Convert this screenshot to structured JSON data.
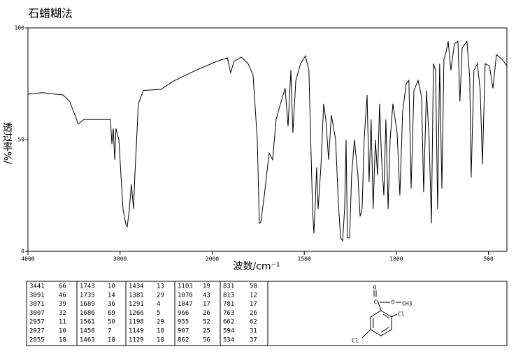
{
  "chart_data": {
    "type": "line",
    "title": "石蜡糊法",
    "x_label": "波数/cm⁻¹",
    "y_label": "透过率%/",
    "xlim": [
      4000,
      400
    ],
    "x_break": 2000,
    "xticks": [
      4000,
      3000,
      2000,
      1500,
      1000,
      500
    ],
    "ylim": [
      0,
      100
    ],
    "yticks": [
      0,
      50,
      100
    ],
    "color": "#000000",
    "x": [
      4000,
      3848,
      3620,
      3545,
      3454,
      3393,
      3165,
      3104,
      3089,
      3074,
      3059,
      3044,
      3013,
      2990,
      2968,
      2937,
      2922,
      2899,
      2877,
      2854,
      2839,
      2801,
      2748,
      2558,
      2406,
      2178,
      1975,
      1918,
      1900,
      1881,
      1842,
      1805,
      1778,
      1755,
      1744,
      1736,
      1717,
      1691,
      1672,
      1653,
      1626,
      1604,
      1588,
      1573,
      1562,
      1546,
      1520,
      1494,
      1475,
      1455,
      1448,
      1440,
      1433,
      1425,
      1410,
      1395,
      1383,
      1368,
      1353,
      1330,
      1315,
      1303,
      1292,
      1281,
      1273,
      1266,
      1254,
      1243,
      1228,
      1209,
      1197,
      1186,
      1175,
      1159,
      1148,
      1137,
      1126,
      1114,
      1102,
      1091,
      1080,
      1068,
      1057,
      1045,
      1034,
      1019,
      996,
      981,
      966,
      947,
      932,
      920,
      905,
      882,
      863,
      852,
      837,
      822,
      810,
      799,
      787,
      776,
      765,
      753,
      742,
      731,
      719,
      704,
      685,
      666,
      655,
      643,
      617,
      602,
      594,
      579,
      560,
      545,
      533,
      518,
      495,
      476,
      457,
      427,
      400
    ],
    "values": [
      70.3,
      71,
      70,
      67,
      57,
      59,
      59,
      59,
      48,
      55,
      41,
      55,
      50,
      34,
      19,
      12,
      11,
      19,
      30,
      19,
      34,
      66,
      72,
      72.5,
      76.5,
      81,
      85,
      86.6,
      80,
      85,
      87,
      84,
      79,
      50,
      12.5,
      13,
      25,
      44,
      41,
      59,
      67,
      73,
      56,
      81,
      53,
      76.5,
      84,
      87.5,
      81,
      19,
      8,
      22,
      37.5,
      19,
      37.5,
      66,
      59,
      41,
      61,
      50,
      22,
      6,
      4.7,
      19,
      50,
      6,
      6,
      34,
      50,
      34,
      15.6,
      19,
      50,
      70,
      31,
      59,
      19,
      50,
      34,
      66,
      41,
      25,
      59,
      19,
      50,
      66,
      53,
      25,
      62.5,
      75,
      76.5,
      28,
      72,
      76.5,
      69,
      26.5,
      72,
      50,
      12.5,
      84,
      81,
      19,
      84,
      28,
      86,
      89,
      94,
      81,
      93,
      94,
      67,
      91,
      94,
      78,
      33,
      81,
      84,
      72,
      39,
      84,
      83,
      73,
      88,
      86,
      83
    ]
  },
  "table": {
    "rows": [
      [
        3441,
        66,
        1743,
        10,
        1434,
        13,
        1103,
        19,
        831,
        58
      ],
      [
        3091,
        46,
        1735,
        14,
        1381,
        29,
        1070,
        43,
        813,
        12
      ],
      [
        3071,
        39,
        1689,
        36,
        1291,
        4,
        1047,
        17,
        781,
        17
      ],
      [
        3007,
        32,
        1686,
        69,
        1266,
        5,
        966,
        26,
        763,
        26
      ],
      [
        2957,
        11,
        1561,
        50,
        1198,
        29,
        955,
        52,
        662,
        62
      ],
      [
        2927,
        10,
        1458,
        7,
        1149,
        18,
        907,
        25,
        594,
        31
      ],
      [
        2855,
        18,
        1463,
        18,
        1129,
        18,
        862,
        56,
        534,
        37
      ]
    ]
  },
  "structure": {
    "labels": [
      "O",
      "C",
      "O",
      "CH3",
      "Cl",
      "Cl"
    ]
  }
}
